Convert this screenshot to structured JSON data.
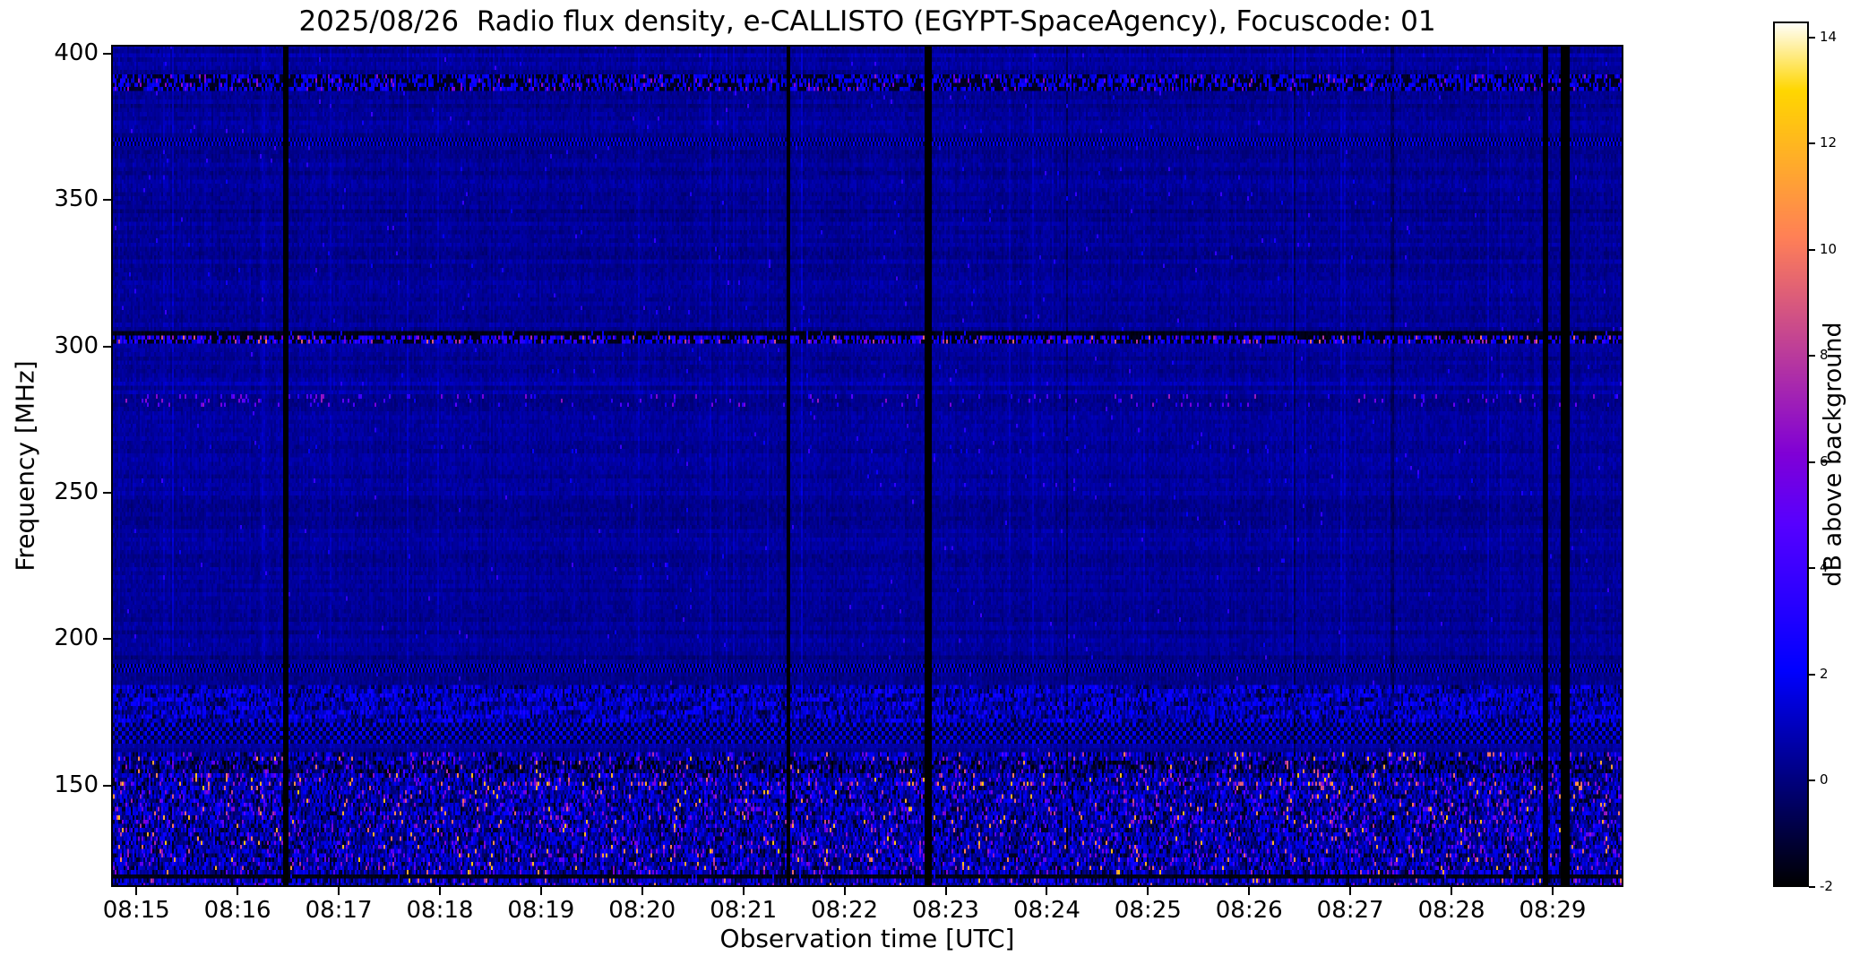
{
  "chart_data": {
    "type": "heatmap",
    "title": "2025/08/26  Radio flux density, e-CALLISTO (EGYPT-SpaceAgency), Focuscode: 01",
    "xlabel": "Observation time [UTC]",
    "ylabel": "Frequency [MHz]",
    "x_tick_labels": [
      "08:15",
      "08:16",
      "08:17",
      "08:18",
      "08:19",
      "08:20",
      "08:21",
      "08:22",
      "08:23",
      "08:24",
      "08:25",
      "08:26",
      "08:27",
      "08:28",
      "08:29"
    ],
    "x_tick_minutes": [
      0,
      1,
      2,
      3,
      4,
      5,
      6,
      7,
      8,
      9,
      10,
      11,
      12,
      13,
      14
    ],
    "x_range_minutes_from_0815": [
      -0.25,
      14.7
    ],
    "y_tick_labels": [
      "150",
      "200",
      "250",
      "300",
      "350",
      "400"
    ],
    "y_ticks_mhz": [
      150,
      200,
      250,
      300,
      350,
      400
    ],
    "y_range_mhz": [
      115.4,
      403.0
    ],
    "value_units": "dB above background",
    "value_range": [
      -2,
      14.3
    ],
    "colormap": "gnuplot2",
    "background_level_db": 0.4,
    "grid": false,
    "seed": 20250826,
    "colorbar": {
      "label": "dB above background",
      "tick_values": [
        -2,
        0,
        2,
        4,
        6,
        8,
        10,
        12,
        14
      ],
      "tick_labels": [
        "-2",
        "0",
        "2",
        "4",
        "6",
        "8",
        "10",
        "12",
        "14"
      ],
      "position": "right"
    },
    "features": {
      "horizontal_features": [
        {
          "type": "speckle_dark_band",
          "freq_mhz": 390.0,
          "half_width_mhz": 2.6,
          "dark_prob": 0.5,
          "dark_db": -1.7,
          "lo_db": 0.8,
          "hi_db": 3.0,
          "bright_prob": 0.04,
          "bright_db": 5.0
        },
        {
          "type": "dotted_line",
          "freq_mhz": 370.0,
          "half_width_mhz": 1.0,
          "dark_db": -1.2,
          "lite_db": 1.6
        },
        {
          "type": "black_line",
          "freq_mhz": 304.0,
          "half_width_mhz": 0.7,
          "db": -1.9
        },
        {
          "type": "bright_speckle_line",
          "freq_mhz": 302.4,
          "half_width_mhz": 1.4,
          "dark_prob": 0.45,
          "dark_db": -1.8,
          "lo_db": 0.8,
          "hi_db": 4.0,
          "bright_prob": 0.07,
          "bright_lo_db": 5.0,
          "bright_hi_db": 10.0
        },
        {
          "type": "sparse_speckle",
          "freq_mhz": 282.0,
          "half_width_mhz": 2.2,
          "prob": 0.05,
          "lo_db": 2.5,
          "hi_db": 7.0,
          "early_boost_min": 2.5,
          "early_prob": 0.12
        },
        {
          "type": "sparse_speckle",
          "freq_mhz": 265.0,
          "half_width_mhz": 1.2,
          "prob": 0.02,
          "lo_db": 1.5,
          "hi_db": 3.5
        },
        {
          "type": "dotted_line",
          "freq_mhz": 190.0,
          "half_width_mhz": 1.8,
          "dark_db": -1.5,
          "lite_db": 1.8
        },
        {
          "type": "noisy_band",
          "freq_mhz": 178.0,
          "half_width_mhz": 6.0,
          "lo_db": -0.3,
          "hi_db": 2.6,
          "dark_prob": 0.12,
          "dark_db": -1.3
        },
        {
          "type": "dotted_band",
          "freq_mhz": 167.5,
          "half_width_mhz": 3.5,
          "dark_db": -1.3,
          "lite_db": 1.6
        },
        {
          "type": "black_line",
          "freq_mhz": 118.6,
          "half_width_mhz": 0.8,
          "db": -1.85
        }
      ],
      "broadband_noise": {
        "below_mhz": 162.0,
        "lo_db": -0.7,
        "hi_db": 2.3,
        "speckle_prob": 0.1,
        "speckle_lo_db": 2.5,
        "speckle_hi_db": 6.5,
        "hot_prob": 0.035,
        "hot_lo_db": 6.0,
        "hot_hi_db": 12.5,
        "black_prob": 0.13,
        "black_db": -1.6,
        "hot_rows_mhz": [
          149.5,
          151.5
        ],
        "hot_row_extra_prob": 0.1,
        "dark_rows_mhz": [
          154.0,
          158.0
        ]
      },
      "vertical_dropouts": [
        {
          "t_min": 1.47,
          "width_min": 0.05,
          "depth": "full"
        },
        {
          "t_min": 6.44,
          "width_min": 0.04,
          "depth": "full"
        },
        {
          "t_min": 7.83,
          "width_min": 0.06,
          "depth": "full"
        },
        {
          "t_min": 13.93,
          "width_min": 0.04,
          "depth": "full"
        },
        {
          "t_min": 14.13,
          "width_min": 0.09,
          "depth": "full"
        },
        {
          "t_min": 9.2,
          "width_min": 0.03,
          "depth": "faint"
        },
        {
          "t_min": 11.45,
          "width_min": 0.03,
          "depth": "faint"
        },
        {
          "t_min": 12.42,
          "width_min": 0.03,
          "depth": "faint"
        }
      ]
    }
  }
}
